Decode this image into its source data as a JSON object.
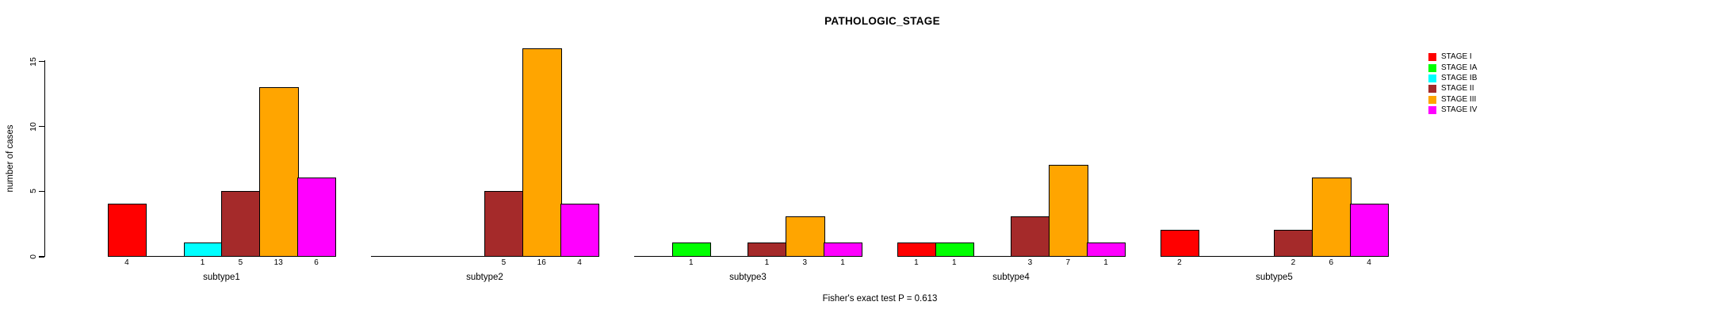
{
  "title": "PATHOLOGIC_STAGE",
  "caption": "Fisher's exact test P = 0.613",
  "ylabel": "number of cases",
  "chart_data": {
    "type": "bar",
    "title": "PATHOLOGIC_STAGE",
    "xlabel": "",
    "ylabel": "number of cases",
    "ylim": [
      0,
      16
    ],
    "y_ticks": [
      0,
      5,
      10,
      15
    ],
    "grid": false,
    "legend_position": "right",
    "categories": [
      "subtype1",
      "subtype2",
      "subtype3",
      "subtype4",
      "subtype5"
    ],
    "series": [
      {
        "name": "STAGE I",
        "color": "#FF0000",
        "values": [
          4,
          0,
          0,
          1,
          2
        ]
      },
      {
        "name": "STAGE IA",
        "color": "#00FF00",
        "values": [
          0,
          0,
          1,
          1,
          0
        ]
      },
      {
        "name": "STAGE IB",
        "color": "#00FFFF",
        "values": [
          1,
          0,
          0,
          0,
          0
        ]
      },
      {
        "name": "STAGE II",
        "color": "#A52A2A",
        "values": [
          5,
          5,
          1,
          3,
          2
        ]
      },
      {
        "name": "STAGE III",
        "color": "#FFA500",
        "values": [
          13,
          16,
          3,
          7,
          6
        ]
      },
      {
        "name": "STAGE IV",
        "color": "#FF00FF",
        "values": [
          6,
          4,
          1,
          1,
          4
        ]
      }
    ],
    "bar_value_labels_shown": true,
    "annotation": "Fisher's exact test P = 0.613"
  },
  "legend": {
    "items": [
      {
        "label": "STAGE I",
        "color": "#FF0000"
      },
      {
        "label": "STAGE IA",
        "color": "#00FF00"
      },
      {
        "label": "STAGE IB",
        "color": "#00FFFF"
      },
      {
        "label": "STAGE II",
        "color": "#A52A2A"
      },
      {
        "label": "STAGE III",
        "color": "#FFA500"
      },
      {
        "label": "STAGE IV",
        "color": "#FF00FF"
      }
    ]
  }
}
